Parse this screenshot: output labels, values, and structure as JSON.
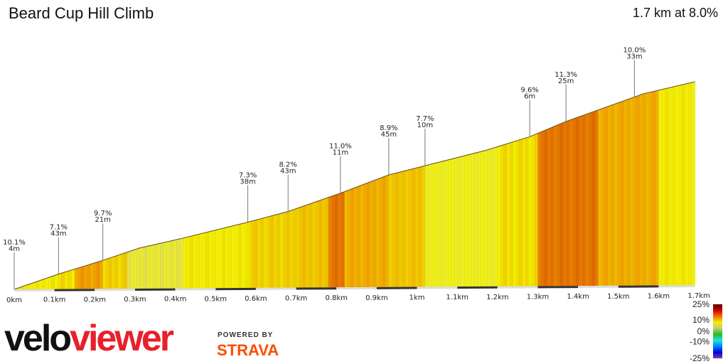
{
  "header": {
    "title": "Beard Cup Hill Climb",
    "summary": "1.7 km at 8.0%"
  },
  "branding": {
    "logo_velo": "velo",
    "logo_viewer": "viewer",
    "powered_by": "POWERED BY",
    "strava": "STRAVA"
  },
  "chart_data": {
    "type": "area",
    "xlabel": "",
    "ylabel": "",
    "x_ticks": [
      "0km",
      "0.1km",
      "0.2km",
      "0.3km",
      "0.4km",
      "0.5km",
      "0.6km",
      "0.7km",
      "0.8km",
      "0.9km",
      "1km",
      "1.1km",
      "1.2km",
      "1.3km",
      "1.4km",
      "1.5km",
      "1.6km",
      "1.7km"
    ],
    "profile": [
      [
        0,
        0
      ],
      [
        0.11,
        10
      ],
      [
        0.22,
        19
      ],
      [
        0.31,
        27
      ],
      [
        0.41,
        33
      ],
      [
        0.58,
        44
      ],
      [
        0.68,
        51
      ],
      [
        0.81,
        63
      ],
      [
        0.93,
        75
      ],
      [
        1.02,
        81
      ],
      [
        1.17,
        91
      ],
      [
        1.28,
        100
      ],
      [
        1.37,
        110
      ],
      [
        1.54,
        126
      ],
      [
        1.56,
        128
      ],
      [
        1.69,
        136
      ]
    ],
    "gradient_segments": [
      [
        0,
        0.1,
        7
      ],
      [
        0.1,
        0.15,
        7.5
      ],
      [
        0.15,
        0.22,
        10
      ],
      [
        0.22,
        0.28,
        8
      ],
      [
        0.28,
        0.42,
        5
      ],
      [
        0.42,
        0.58,
        7
      ],
      [
        0.58,
        0.7,
        8
      ],
      [
        0.7,
        0.78,
        8.5
      ],
      [
        0.78,
        0.82,
        11.5
      ],
      [
        0.82,
        0.93,
        9.5
      ],
      [
        0.93,
        1.02,
        8.5
      ],
      [
        1.02,
        1.2,
        6
      ],
      [
        1.2,
        1.3,
        7.5
      ],
      [
        1.3,
        1.45,
        11.5
      ],
      [
        1.45,
        1.6,
        9.5
      ],
      [
        1.6,
        1.69,
        7
      ]
    ],
    "annotations": [
      {
        "km": 0,
        "grade": "10.1%",
        "length": "4m"
      },
      {
        "km": 0.11,
        "grade": "7.1%",
        "length": "43m"
      },
      {
        "km": 0.22,
        "grade": "9.7%",
        "length": "21m"
      },
      {
        "km": 0.58,
        "grade": "7.3%",
        "length": "38m"
      },
      {
        "km": 0.68,
        "grade": "8.2%",
        "length": "43m"
      },
      {
        "km": 0.81,
        "grade": "11.0%",
        "length": "11m"
      },
      {
        "km": 0.93,
        "grade": "8.9%",
        "length": "45m"
      },
      {
        "km": 1.02,
        "grade": "7.7%",
        "length": "10m"
      },
      {
        "km": 1.28,
        "grade": "9.6%",
        "length": "6m"
      },
      {
        "km": 1.37,
        "grade": "11.3%",
        "length": "25m"
      },
      {
        "km": 1.54,
        "grade": "10.0%",
        "length": "33m"
      }
    ],
    "legend": {
      "labels": [
        "25%",
        "10%",
        "0%",
        "-10%",
        "-25%"
      ],
      "colors": [
        "#5a0000",
        "#cc0000",
        "#f07000",
        "#f0f000",
        "#c8c878",
        "#20c020",
        "#20e0e0",
        "#0080ff",
        "#0000e0",
        "#8040a0"
      ]
    }
  }
}
